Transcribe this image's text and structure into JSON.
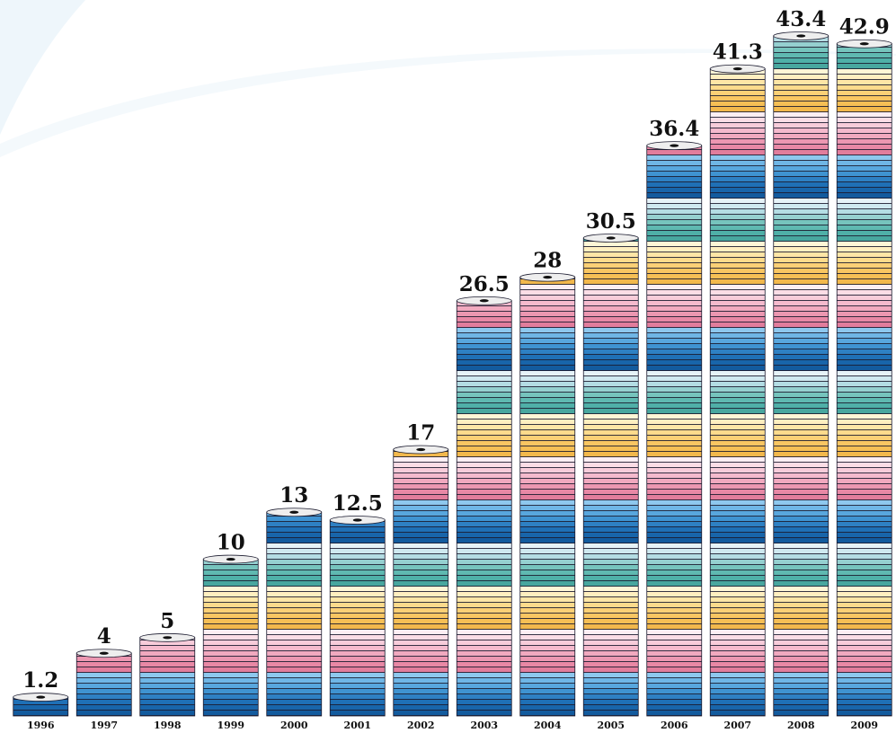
{
  "chart_data": {
    "type": "bar",
    "categories": [
      "1996",
      "1997",
      "1998",
      "1999",
      "2000",
      "2001",
      "2002",
      "2003",
      "2004",
      "2005",
      "2006",
      "2007",
      "2008",
      "2009"
    ],
    "values": [
      1.2,
      4,
      5,
      10,
      13,
      12.5,
      17,
      26.5,
      28,
      30.5,
      36.4,
      41.3,
      43.4,
      42.9
    ]
  }
}
